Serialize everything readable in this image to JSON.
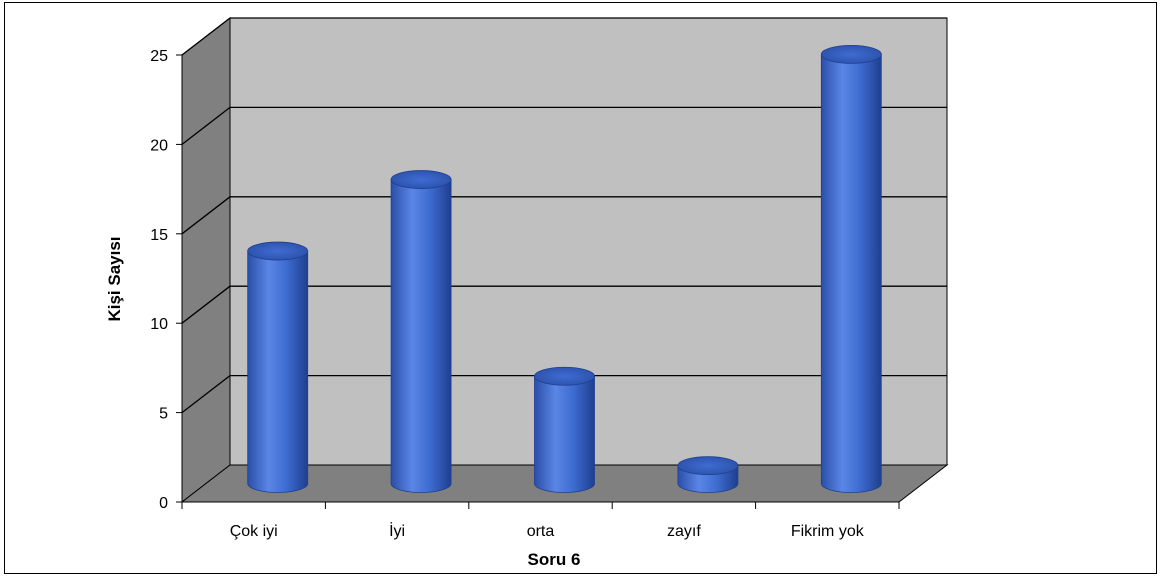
{
  "chart_data": {
    "type": "bar",
    "title": "",
    "xlabel": "Soru 6",
    "ylabel": "Kişi Sayısı",
    "categories": [
      "Çok iyi",
      "İyi",
      "orta",
      "zayıf",
      "Fikrim yok"
    ],
    "values": [
      13,
      17,
      6,
      1,
      24
    ],
    "ylim": [
      0,
      25
    ],
    "yticks": [
      0,
      5,
      10,
      15,
      20,
      25
    ],
    "grid": true,
    "legend": "none",
    "colors": {
      "bar": "#3d6bd0",
      "bar_dark": "#1f3f8f",
      "bar_light": "#6f95ea",
      "wall": "#c0c0c0",
      "side_wall": "#808080",
      "floor": "#808080",
      "gridline": "#000000"
    }
  }
}
